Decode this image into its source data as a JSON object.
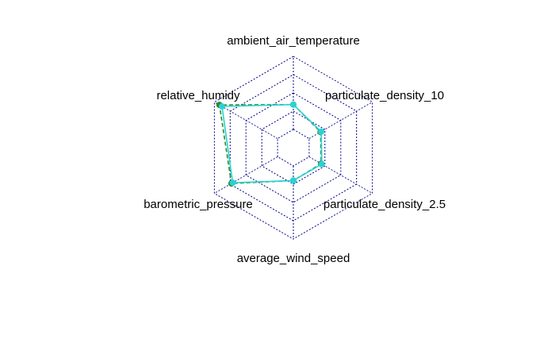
{
  "chart_data": {
    "type": "radar",
    "axes": [
      "ambient_air_temperature",
      "particulate_density_10",
      "particulate_density_2.5",
      "average_wind_speed",
      "barometric_pressure",
      "relative_humidy"
    ],
    "rlim": [
      0,
      1
    ],
    "grid_levels": 4,
    "grid": true,
    "series": [
      {
        "color": "#2b8a2b",
        "values": [
          0.34,
          0.18,
          0.19,
          0.2,
          0.73,
          0.92
        ]
      },
      {
        "color": "#29d3d3",
        "values": [
          0.34,
          0.19,
          0.2,
          0.2,
          0.71,
          0.88
        ]
      }
    ],
    "colors": {
      "grid": "#00008b",
      "axis_text": "#000000"
    }
  }
}
